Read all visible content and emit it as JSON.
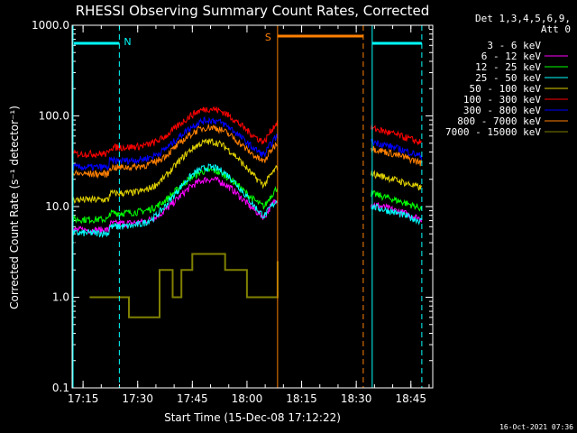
{
  "chart_data": {
    "type": "line",
    "title": "RHESSI Observing Summary Count Rates, Corrected",
    "xlabel": "Start Time (15-Dec-08 17:12:22)",
    "ylabel": "Corrected Count Rate (s⁻¹ detector⁻¹)",
    "y_scale": "log",
    "ylim": [
      0.1,
      1000
    ],
    "xlim_minutes": [
      17.2,
      18.85
    ],
    "x_ticks": [
      "17:15",
      "17:30",
      "17:45",
      "18:00",
      "18:15",
      "18:30",
      "18:45"
    ],
    "y_ticks": [
      "0.1",
      "1.0",
      "10.0",
      "100.0",
      "1000.0"
    ],
    "legend_header": [
      "Det 1,3,4,5,6,9,",
      "Att 0"
    ],
    "series": [
      {
        "name": "3 - 6 keV",
        "color": "#000000"
      },
      {
        "name": "6 - 12 keV",
        "color": "#ff00ff"
      },
      {
        "name": "12 - 25 keV",
        "color": "#00ff00"
      },
      {
        "name": "25 - 50 keV",
        "color": "#00ffff"
      },
      {
        "name": "50 - 100 keV",
        "color": "#e0d000"
      },
      {
        "name": "100 - 300 keV",
        "color": "#ff0000"
      },
      {
        "name": "300 - 800 keV",
        "color": "#0000ff"
      },
      {
        "name": "800 - 7000 keV",
        "color": "#ff8000"
      },
      {
        "name": "7000 - 15000 keV",
        "color": "#808000"
      }
    ],
    "annotations": [
      {
        "label": "N",
        "color": "#00ffff"
      },
      {
        "label": "S",
        "color": "#ff8000"
      }
    ],
    "legend_position": "right"
  },
  "footer": {
    "timestamp": "16-Oct-2021 07:36"
  }
}
